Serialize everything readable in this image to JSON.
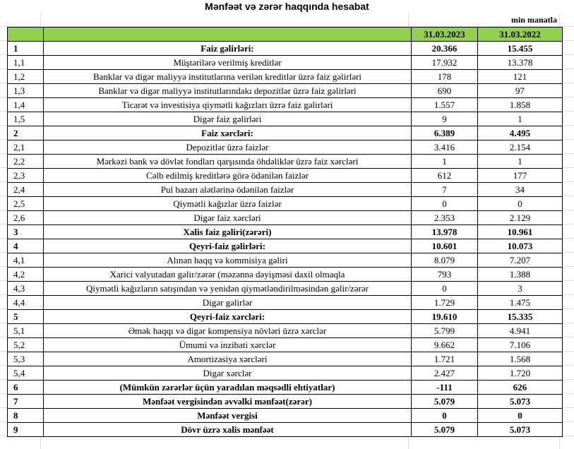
{
  "title": "Mənfəət və zərər haqqında hesabat",
  "unit": "min manatla",
  "columns": [
    "",
    "",
    "31.03.2023",
    "31.03.2022"
  ],
  "header_color": "#92d050",
  "rows": [
    {
      "n": "1",
      "d": "Faiz gəlirləri:",
      "a": "20.366",
      "b": "15.455",
      "bold": true
    },
    {
      "n": "1,1",
      "d": "Müştərilərə verilmiş kreditlər",
      "a": "17.932",
      "b": "13.378"
    },
    {
      "n": "1,2",
      "d": "Banklar və digər maliyyə institutlarına verilən kreditlər üzrə faiz gəlirləri",
      "a": "178",
      "b": "121"
    },
    {
      "n": "1,3",
      "d": "Banklar və digər maliyyə institutlarındakı depozitlər üzrə faiz gəlirləri",
      "a": "690",
      "b": "97"
    },
    {
      "n": "1,4",
      "d": "Ticarət və investisiya qiymətli kağızları üzrə faiz gəlirləri",
      "a": "1.557",
      "b": "1.858"
    },
    {
      "n": "1,5",
      "d": "Digər faiz gəlirləri",
      "a": "9",
      "b": "1"
    },
    {
      "n": "2",
      "d": "Faiz xərcləri:",
      "a": "6.389",
      "b": "4.495",
      "bold": true
    },
    {
      "n": "2,1",
      "d": "Depozitlər üzrə faizlər",
      "a": "3.416",
      "b": "2.154"
    },
    {
      "n": "2,2",
      "d": "Mərkəzi bank və dövlət fondları qarşısında öhdəliklər üzrə faiz xərcləri",
      "a": "1",
      "b": "1"
    },
    {
      "n": "2,3",
      "d": "Cəlb edilmiş kreditlərə görə ödənilən faizlər",
      "a": "612",
      "b": "177"
    },
    {
      "n": "2,4",
      "d": "Pul bazarı alətlərinə ödənilən faizlər",
      "a": "7",
      "b": "34"
    },
    {
      "n": "2,5",
      "d": "Qiymətli kağızlar üzrə faizlər",
      "a": "0",
      "b": "0"
    },
    {
      "n": "2,6",
      "d": "Digər faiz xərcləri",
      "a": "2.353",
      "b": "2.129"
    },
    {
      "n": "3",
      "d": "Xalis faiz gəliri(zərəri)",
      "a": "13.978",
      "b": "10.961",
      "bold": true
    },
    {
      "n": "4",
      "d": "Qeyri-faiz gəlirləri:",
      "a": "10.601",
      "b": "10.073",
      "bold": true
    },
    {
      "n": "4,1",
      "d": "Alınan haqq və kommisiya gəliri",
      "a": "8.079",
      "b": "7.207"
    },
    {
      "n": "4,2",
      "d": "Xarici valyutadan gəlir/zərər (məzənnə dəyişməsi daxil olmaqla",
      "a": "793",
      "b": "1.388"
    },
    {
      "n": "4,3",
      "d": "Qiymətli kağızların satışından və yenidən qiymətləndirilməsindən gəlir/zərər",
      "a": "0",
      "b": "3"
    },
    {
      "n": "4,4",
      "d": "Digər gəlirlər",
      "a": "1.729",
      "b": "1.475"
    },
    {
      "n": "5",
      "d": "Qeyri-faiz xərcləri:",
      "a": "19.610",
      "b": "15.335",
      "bold": true
    },
    {
      "n": "5,1",
      "d": "Əmək haqqı və digər kompensiya növləri üzrə xərclər",
      "a": "5.799",
      "b": "4.941"
    },
    {
      "n": "5,2",
      "d": "Ümumi və inzibati xərclər",
      "a": "9.662",
      "b": "7.106"
    },
    {
      "n": "5,3",
      "d": "Amortizasiya xərcləri",
      "a": "1.721",
      "b": "1.568"
    },
    {
      "n": "5,4",
      "d": "Digər xərclər",
      "a": "2.427",
      "b": "1.720"
    },
    {
      "n": "6",
      "d": "(Mümkün zərərlər üçün yaradılan məqsədli ehtiyatlar)",
      "a": "-111",
      "b": "626",
      "bold": true
    },
    {
      "n": "7",
      "d": "Mənfəət vergisindən əvvəlki mənfəət(zərər)",
      "a": "5.079",
      "b": "5.073",
      "bold": true
    },
    {
      "n": "8",
      "d": "Mənfəət vergisi",
      "a": "0",
      "b": "0",
      "bold": true
    },
    {
      "n": "9",
      "d": "Dövr üzrə xalis mənfəət",
      "a": "5.079",
      "b": "5.073",
      "bold": true
    }
  ]
}
